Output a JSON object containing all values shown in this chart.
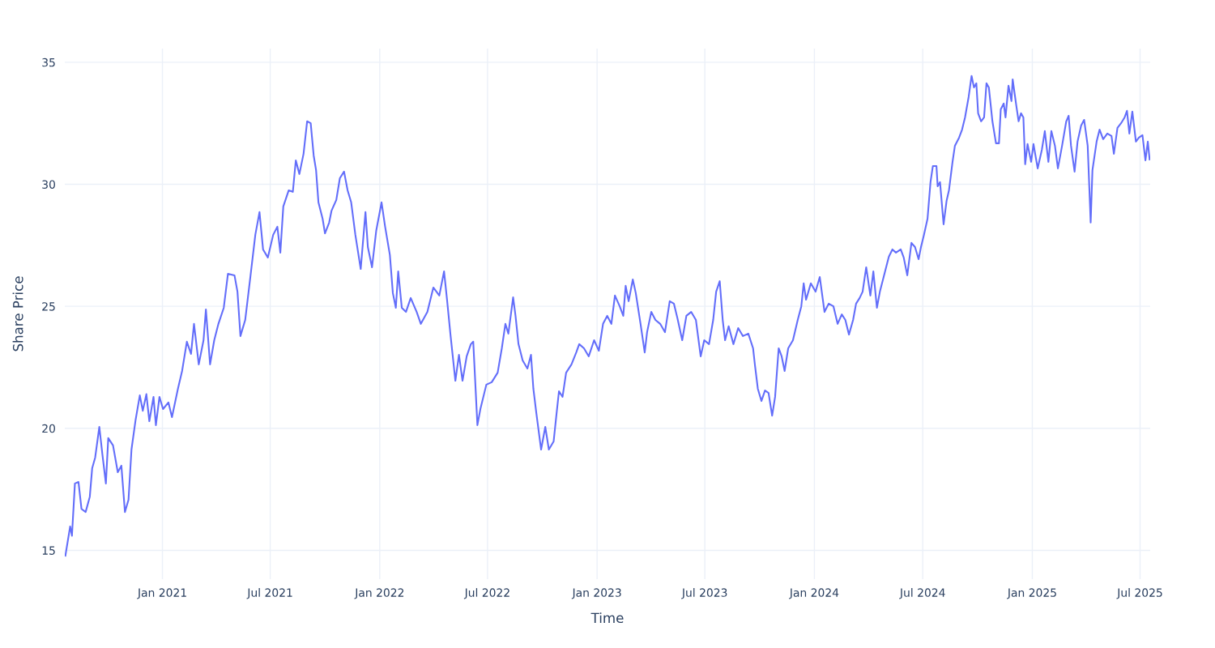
{
  "chart_data": {
    "type": "line",
    "xlabel": "Time",
    "ylabel": "Share Price",
    "xlim": [
      "2020-07-21",
      "2025-07-18"
    ],
    "ylim": [
      13.82,
      35.56
    ],
    "xticks": [
      {
        "value": "2021-01-01",
        "label": "Jan 2021"
      },
      {
        "value": "2021-07-01",
        "label": "Jul 2021"
      },
      {
        "value": "2022-01-01",
        "label": "Jan 2022"
      },
      {
        "value": "2022-07-01",
        "label": "Jul 2022"
      },
      {
        "value": "2023-01-01",
        "label": "Jan 2023"
      },
      {
        "value": "2023-07-01",
        "label": "Jul 2023"
      },
      {
        "value": "2024-01-01",
        "label": "Jan 2024"
      },
      {
        "value": "2024-07-01",
        "label": "Jul 2024"
      },
      {
        "value": "2025-01-01",
        "label": "Jan 2025"
      },
      {
        "value": "2025-07-01",
        "label": "Jul 2025"
      }
    ],
    "yticks": [
      15,
      20,
      25,
      30,
      35
    ],
    "grid": true,
    "legend": false,
    "marker": "none",
    "line_style": "solid",
    "x": [
      "2020-07-22",
      "2020-07-30",
      "2020-08-02",
      "2020-08-07",
      "2020-08-13",
      "2020-08-18",
      "2020-08-25",
      "2020-09-01",
      "2020-09-05",
      "2020-09-10",
      "2020-09-17",
      "2020-09-22",
      "2020-09-28",
      "2020-10-02",
      "2020-10-10",
      "2020-10-18",
      "2020-10-24",
      "2020-10-30",
      "2020-11-05",
      "2020-11-10",
      "2020-11-17",
      "2020-11-24",
      "2020-11-29",
      "2020-12-05",
      "2020-12-10",
      "2020-12-17",
      "2020-12-21",
      "2020-12-27",
      "2021-01-02",
      "2021-01-11",
      "2021-01-17",
      "2021-01-27",
      "2021-02-03",
      "2021-02-11",
      "2021-02-18",
      "2021-02-23",
      "2021-03-03",
      "2021-03-11",
      "2021-03-15",
      "2021-03-22",
      "2021-03-29",
      "2021-04-05",
      "2021-04-14",
      "2021-04-21",
      "2021-05-02",
      "2021-05-07",
      "2021-05-12",
      "2021-05-20",
      "2021-05-29",
      "2021-06-06",
      "2021-06-13",
      "2021-06-19",
      "2021-06-27",
      "2021-07-06",
      "2021-07-13",
      "2021-07-18",
      "2021-07-23",
      "2021-08-01",
      "2021-08-08",
      "2021-08-13",
      "2021-08-19",
      "2021-08-26",
      "2021-09-01",
      "2021-09-07",
      "2021-09-12",
      "2021-09-16",
      "2021-09-20",
      "2021-09-27",
      "2021-10-01",
      "2021-10-08",
      "2021-10-12",
      "2021-10-20",
      "2021-10-26",
      "2021-11-02",
      "2021-11-08",
      "2021-11-14",
      "2021-11-21",
      "2021-11-30",
      "2021-12-08",
      "2021-12-12",
      "2021-12-19",
      "2021-12-26",
      "2022-01-04",
      "2022-01-10",
      "2022-01-18",
      "2022-01-23",
      "2022-01-28",
      "2022-02-01",
      "2022-02-07",
      "2022-02-14",
      "2022-02-22",
      "2022-03-04",
      "2022-03-11",
      "2022-03-22",
      "2022-04-01",
      "2022-04-11",
      "2022-04-19",
      "2022-04-24",
      "2022-04-30",
      "2022-05-08",
      "2022-05-14",
      "2022-05-20",
      "2022-05-27",
      "2022-06-03",
      "2022-06-07",
      "2022-06-14",
      "2022-06-19",
      "2022-06-29",
      "2022-07-08",
      "2022-07-18",
      "2022-07-25",
      "2022-07-31",
      "2022-08-05",
      "2022-08-13",
      "2022-08-17",
      "2022-08-22",
      "2022-08-29",
      "2022-09-06",
      "2022-09-12",
      "2022-09-16",
      "2022-09-21",
      "2022-09-29",
      "2022-10-06",
      "2022-10-12",
      "2022-10-20",
      "2022-10-25",
      "2022-10-29",
      "2022-11-04",
      "2022-11-10",
      "2022-11-19",
      "2022-11-27",
      "2022-12-02",
      "2022-12-10",
      "2022-12-18",
      "2022-12-27",
      "2023-01-04",
      "2023-01-11",
      "2023-01-18",
      "2023-01-25",
      "2023-01-31",
      "2023-02-08",
      "2023-02-14",
      "2023-02-18",
      "2023-02-23",
      "2023-03-02",
      "2023-03-07",
      "2023-03-15",
      "2023-03-22",
      "2023-03-26",
      "2023-04-02",
      "2023-04-09",
      "2023-04-17",
      "2023-04-25",
      "2023-05-03",
      "2023-05-10",
      "2023-05-16",
      "2023-05-24",
      "2023-05-31",
      "2023-06-08",
      "2023-06-16",
      "2023-06-24",
      "2023-06-30",
      "2023-07-08",
      "2023-07-15",
      "2023-07-20",
      "2023-07-26",
      "2023-07-31",
      "2023-08-04",
      "2023-08-10",
      "2023-08-18",
      "2023-08-26",
      "2023-09-03",
      "2023-09-12",
      "2023-09-20",
      "2023-09-23",
      "2023-09-28",
      "2023-10-04",
      "2023-10-10",
      "2023-10-16",
      "2023-10-22",
      "2023-10-27",
      "2023-11-02",
      "2023-11-07",
      "2023-11-12",
      "2023-11-18",
      "2023-11-26",
      "2023-12-04",
      "2023-12-10",
      "2023-12-14",
      "2023-12-18",
      "2023-12-26",
      "2024-01-03",
      "2024-01-10",
      "2024-01-18",
      "2024-01-25",
      "2024-02-02",
      "2024-02-09",
      "2024-02-16",
      "2024-02-22",
      "2024-02-28",
      "2024-03-06",
      "2024-03-11",
      "2024-03-17",
      "2024-03-22",
      "2024-03-28",
      "2024-04-04",
      "2024-04-09",
      "2024-04-15",
      "2024-04-20",
      "2024-04-27",
      "2024-05-05",
      "2024-05-11",
      "2024-05-17",
      "2024-05-25",
      "2024-05-30",
      "2024-06-05",
      "2024-06-12",
      "2024-06-18",
      "2024-06-24",
      "2024-06-28",
      "2024-07-03",
      "2024-07-09",
      "2024-07-14",
      "2024-07-18",
      "2024-07-24",
      "2024-07-26",
      "2024-07-30",
      "2024-08-05",
      "2024-08-10",
      "2024-08-14",
      "2024-08-20",
      "2024-08-24",
      "2024-08-31",
      "2024-09-05",
      "2024-09-10",
      "2024-09-16",
      "2024-09-21",
      "2024-09-25",
      "2024-09-29",
      "2024-10-02",
      "2024-10-07",
      "2024-10-12",
      "2024-10-16",
      "2024-10-20",
      "2024-10-26",
      "2024-11-01",
      "2024-11-06",
      "2024-11-09",
      "2024-11-14",
      "2024-11-17",
      "2024-11-22",
      "2024-11-27",
      "2024-11-29",
      "2024-12-05",
      "2024-12-09",
      "2024-12-13",
      "2024-12-17",
      "2024-12-20",
      "2024-12-24",
      "2024-12-30",
      "2025-01-03",
      "2025-01-10",
      "2025-01-17",
      "2025-01-22",
      "2025-01-28",
      "2025-02-02",
      "2025-02-08",
      "2025-02-13",
      "2025-02-20",
      "2025-02-27",
      "2025-03-03",
      "2025-03-07",
      "2025-03-13",
      "2025-03-18",
      "2025-03-24",
      "2025-03-29",
      "2025-04-04",
      "2025-04-08",
      "2025-04-09",
      "2025-04-12",
      "2025-04-19",
      "2025-04-24",
      "2025-04-30",
      "2025-05-07",
      "2025-05-14",
      "2025-05-18",
      "2025-05-24",
      "2025-05-30",
      "2025-06-05",
      "2025-06-09",
      "2025-06-13",
      "2025-06-18",
      "2025-06-24",
      "2025-06-29",
      "2025-07-05",
      "2025-07-10",
      "2025-07-14",
      "2025-07-17"
    ],
    "series": [
      {
        "color": "#636efa",
        "values": [
          14.78,
          15.98,
          15.6,
          17.74,
          17.8,
          16.7,
          16.57,
          17.2,
          18.37,
          18.8,
          20.06,
          18.96,
          17.74,
          19.6,
          19.3,
          18.2,
          18.47,
          16.57,
          17.07,
          19.13,
          20.36,
          21.35,
          20.72,
          21.4,
          20.29,
          21.29,
          20.13,
          21.29,
          20.79,
          21.06,
          20.46,
          21.62,
          22.35,
          23.55,
          23.05,
          24.28,
          22.62,
          23.61,
          24.87,
          22.62,
          23.61,
          24.28,
          24.94,
          26.33,
          26.27,
          25.6,
          23.78,
          24.44,
          26.27,
          27.93,
          28.86,
          27.33,
          27.0,
          27.93,
          28.26,
          27.2,
          29.09,
          29.75,
          29.69,
          30.98,
          30.42,
          31.25,
          32.58,
          32.5,
          31.18,
          30.58,
          29.26,
          28.59,
          27.99,
          28.43,
          28.92,
          29.36,
          30.25,
          30.52,
          29.75,
          29.26,
          27.93,
          26.53,
          28.86,
          27.43,
          26.6,
          28.09,
          29.26,
          28.26,
          27.1,
          25.54,
          24.94,
          26.43,
          24.94,
          24.77,
          25.34,
          24.77,
          24.28,
          24.77,
          25.77,
          25.44,
          26.43,
          25.27,
          23.78,
          21.95,
          23.01,
          21.95,
          22.95,
          23.45,
          23.55,
          20.13,
          20.79,
          21.79,
          21.89,
          22.28,
          23.28,
          24.28,
          23.88,
          25.37,
          24.61,
          23.45,
          22.78,
          22.45,
          23.01,
          21.62,
          20.62,
          19.13,
          20.06,
          19.13,
          19.46,
          20.62,
          21.52,
          21.29,
          22.28,
          22.62,
          23.11,
          23.45,
          23.28,
          22.95,
          23.61,
          23.18,
          24.28,
          24.61,
          24.28,
          25.44,
          25.0,
          24.61,
          25.84,
          25.21,
          26.1,
          25.54,
          24.28,
          23.11,
          23.94,
          24.77,
          24.44,
          24.28,
          23.94,
          25.21,
          25.11,
          24.51,
          23.61,
          24.61,
          24.77,
          24.44,
          22.95,
          23.61,
          23.45,
          24.44,
          25.6,
          26.03,
          24.44,
          23.61,
          24.18,
          23.45,
          24.11,
          23.78,
          23.88,
          23.28,
          22.62,
          21.62,
          21.12,
          21.55,
          21.45,
          20.52,
          21.29,
          23.28,
          22.95,
          22.35,
          23.28,
          23.61,
          24.44,
          25.0,
          25.94,
          25.27,
          25.94,
          25.6,
          26.2,
          24.77,
          25.11,
          25.0,
          24.28,
          24.67,
          24.44,
          23.84,
          24.44,
          25.11,
          25.34,
          25.6,
          26.6,
          25.44,
          26.43,
          24.94,
          25.6,
          26.27,
          27.03,
          27.33,
          27.2,
          27.33,
          27.0,
          26.27,
          27.6,
          27.43,
          26.93,
          27.43,
          27.93,
          28.59,
          30.09,
          30.75,
          30.75,
          29.92,
          30.09,
          28.36,
          29.32,
          29.75,
          30.92,
          31.58,
          31.91,
          32.24,
          32.74,
          33.57,
          34.44,
          33.97,
          34.14,
          32.91,
          32.58,
          32.74,
          34.14,
          33.97,
          32.58,
          31.68,
          31.68,
          33.07,
          33.31,
          32.74,
          34.04,
          33.41,
          34.3,
          33.24,
          32.58,
          32.91,
          32.74,
          30.82,
          31.65,
          30.92,
          31.65,
          30.65,
          31.41,
          32.18,
          30.92,
          32.18,
          31.58,
          30.65,
          31.58,
          32.58,
          32.81,
          31.58,
          30.52,
          31.75,
          32.41,
          32.64,
          31.58,
          29.09,
          28.43,
          30.58,
          31.75,
          32.24,
          31.85,
          32.08,
          31.98,
          31.25,
          32.31,
          32.5,
          32.74,
          33.01,
          32.08,
          32.98,
          31.75,
          31.91,
          32.01,
          30.98,
          31.75,
          31.02
        ]
      }
    ]
  }
}
